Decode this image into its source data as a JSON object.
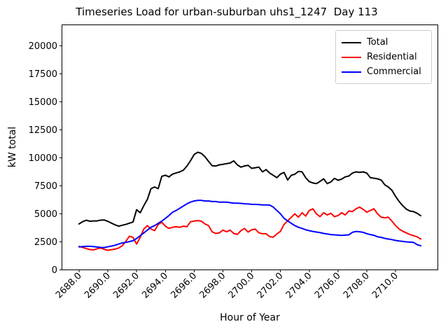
{
  "chart_data": {
    "type": "line",
    "title": "Timeseries Load for urban-suburban uhs1_1247  Day 113",
    "xlabel": "Hour of Year",
    "ylabel": "kW total",
    "x_start": 2688.0,
    "x_step": 0.25,
    "xlim": [
      2686.81,
      2712.94
    ],
    "ylim": [
      0,
      21875
    ],
    "xticks": [
      2688,
      2690,
      2692,
      2694,
      2696,
      2698,
      2700,
      2702,
      2704,
      2706,
      2708,
      2710
    ],
    "xtick_label_format": "one_decimal",
    "yticks": [
      0,
      2500,
      5000,
      7500,
      10000,
      12500,
      15000,
      17500,
      20000
    ],
    "grid": false,
    "legend_position": "upper right",
    "series": [
      {
        "name": "Total",
        "color": "#000000",
        "values": [
          4100,
          4300,
          4430,
          4340,
          4370,
          4370,
          4440,
          4450,
          4330,
          4170,
          4020,
          3900,
          3980,
          4060,
          4170,
          4270,
          5370,
          5100,
          5730,
          6300,
          7250,
          7400,
          7250,
          8350,
          8450,
          8300,
          8550,
          8650,
          8750,
          8900,
          9270,
          9750,
          10300,
          10500,
          10400,
          10100,
          9690,
          9300,
          9270,
          9375,
          9420,
          9480,
          9540,
          9730,
          9375,
          9170,
          9280,
          9330,
          9060,
          9120,
          9170,
          8750,
          8950,
          8640,
          8440,
          8230,
          8550,
          8700,
          8020,
          8440,
          8540,
          8790,
          8750,
          8230,
          7880,
          7760,
          7700,
          7900,
          8125,
          7700,
          7850,
          8170,
          8000,
          8100,
          8300,
          8375,
          8640,
          8750,
          8700,
          8750,
          8640,
          8230,
          8180,
          8125,
          8020,
          7600,
          7390,
          7100,
          6560,
          6100,
          5730,
          5420,
          5250,
          5200,
          5050,
          4830
        ]
      },
      {
        "name": "Residential",
        "color": "#ff0000",
        "values": [
          2100,
          2000,
          1900,
          1820,
          1780,
          1880,
          1950,
          1830,
          1750,
          1800,
          1850,
          1950,
          2150,
          2550,
          3000,
          2900,
          2300,
          2900,
          3650,
          3950,
          3650,
          3500,
          4050,
          4250,
          3900,
          3700,
          3800,
          3850,
          3800,
          3900,
          3850,
          4300,
          4350,
          4400,
          4350,
          4100,
          3950,
          3400,
          3250,
          3300,
          3550,
          3400,
          3550,
          3250,
          3170,
          3500,
          3700,
          3375,
          3580,
          3640,
          3300,
          3230,
          3230,
          2960,
          2920,
          3200,
          3440,
          4060,
          4380,
          4690,
          5000,
          4700,
          5100,
          4800,
          5300,
          5450,
          5000,
          4750,
          5100,
          4900,
          5050,
          4750,
          4850,
          5100,
          4900,
          5250,
          5200,
          5450,
          5600,
          5400,
          5150,
          5300,
          5450,
          5000,
          4700,
          4650,
          4700,
          4350,
          3950,
          3650,
          3450,
          3300,
          3150,
          3050,
          2950,
          2750
        ]
      },
      {
        "name": "Commercial",
        "color": "#0000ff",
        "values": [
          2050,
          2075,
          2100,
          2100,
          2075,
          2040,
          2000,
          1990,
          2060,
          2125,
          2200,
          2300,
          2400,
          2450,
          2525,
          2600,
          2800,
          3050,
          3300,
          3550,
          3800,
          3950,
          4150,
          4350,
          4600,
          4850,
          5150,
          5300,
          5500,
          5700,
          5900,
          6050,
          6150,
          6200,
          6200,
          6150,
          6150,
          6100,
          6100,
          6050,
          6050,
          6050,
          6000,
          5950,
          5950,
          5940,
          5900,
          5880,
          5850,
          5840,
          5830,
          5800,
          5800,
          5780,
          5600,
          5300,
          5000,
          4600,
          4375,
          4150,
          3950,
          3800,
          3700,
          3580,
          3500,
          3430,
          3375,
          3330,
          3250,
          3200,
          3150,
          3125,
          3100,
          3080,
          3100,
          3125,
          3350,
          3430,
          3400,
          3350,
          3230,
          3150,
          3080,
          2950,
          2900,
          2810,
          2750,
          2700,
          2625,
          2575,
          2540,
          2500,
          2475,
          2450,
          2250,
          2150
        ]
      }
    ]
  }
}
